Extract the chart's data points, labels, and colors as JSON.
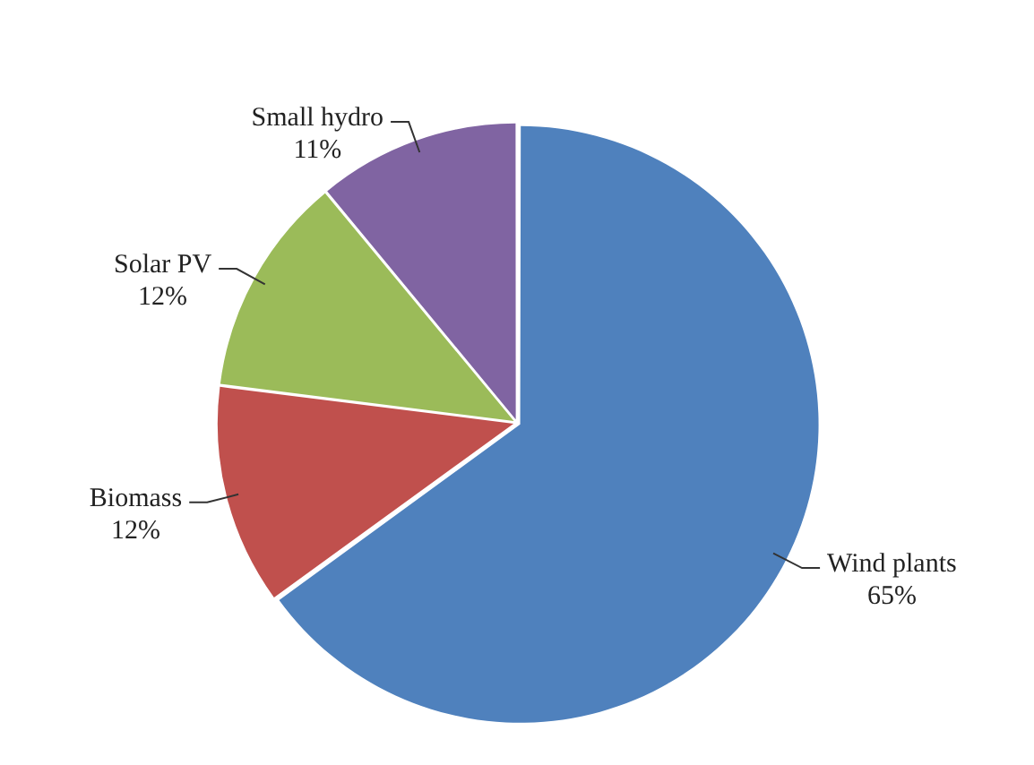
{
  "chart_data": {
    "type": "pie",
    "categories": [
      "Wind plants",
      "Biomass",
      "Solar PV",
      "Small hydro"
    ],
    "values": [
      65,
      12,
      12,
      11
    ],
    "value_labels": [
      "65%",
      "12%",
      "12%",
      "11%"
    ],
    "colors": [
      "#4f81bd",
      "#c0504d",
      "#9bbb59",
      "#8064a2"
    ],
    "legend": false
  }
}
